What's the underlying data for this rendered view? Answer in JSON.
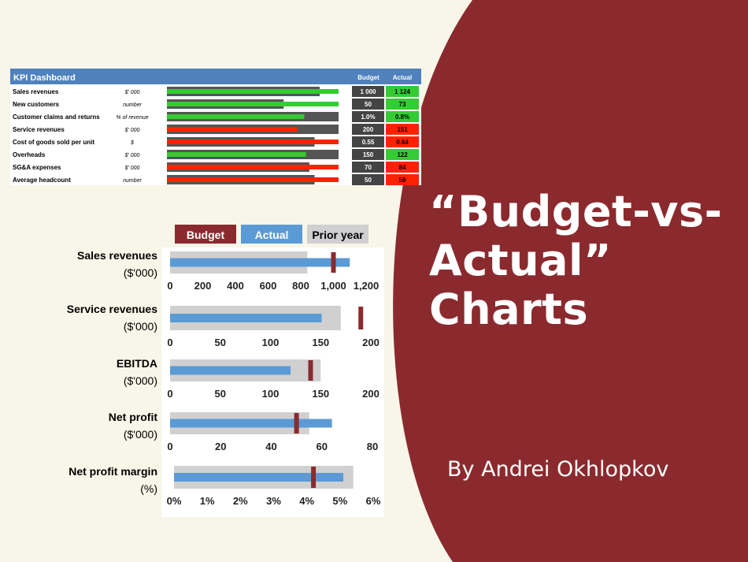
{
  "colors": {
    "maroon": "#8b2a2e",
    "actual_blue": "#5b9bd5",
    "prior_gray": "#d0d0d0",
    "kpi_header": "#4f81bd",
    "kpi_green": "#33cc33",
    "kpi_red": "#ff2200",
    "kpi_bar_gray": "#555555",
    "page_bg": "#f7f6e8"
  },
  "title": {
    "line1": "“Budget-vs-",
    "line2": "Actual”",
    "line3": "Charts"
  },
  "author": "By Andrei Okhlopkov",
  "chart_data": [
    {
      "type": "table",
      "title": "KPI Dashboard",
      "columns": [
        "Budget",
        "Actual"
      ],
      "rows": [
        {
          "name": "Sales revenues",
          "unit": "$' 000",
          "budget": "1 000",
          "actual": "1 124",
          "status": "good",
          "budget_bar": 0.89,
          "actual_bar": 1.0
        },
        {
          "name": "New customers",
          "unit": "number",
          "budget": "50",
          "actual": "73",
          "status": "good",
          "budget_bar": 0.68,
          "actual_bar": 1.0
        },
        {
          "name": "Customer claims and returns",
          "unit": "% of revenue",
          "budget": "1.0%",
          "actual": "0.8%",
          "status": "good",
          "budget_bar": 1.0,
          "actual_bar": 0.8
        },
        {
          "name": "Service revenues",
          "unit": "$' 000",
          "budget": "200",
          "actual": "151",
          "status": "bad",
          "budget_bar": 1.0,
          "actual_bar": 0.76
        },
        {
          "name": "Cost of goods sold per unit",
          "unit": "$",
          "budget": "0.55",
          "actual": "0.64",
          "status": "bad",
          "budget_bar": 0.86,
          "actual_bar": 1.0
        },
        {
          "name": "Overheads",
          "unit": "$' 000",
          "budget": "150",
          "actual": "122",
          "status": "good",
          "budget_bar": 1.0,
          "actual_bar": 0.81
        },
        {
          "name": "SG&A expenses",
          "unit": "$' 000",
          "budget": "70",
          "actual": "84",
          "status": "bad",
          "budget_bar": 0.83,
          "actual_bar": 1.0
        },
        {
          "name": "Average headcount",
          "unit": "number",
          "budget": "50",
          "actual": "58",
          "status": "bad",
          "budget_bar": 0.86,
          "actual_bar": 1.0
        }
      ]
    },
    {
      "type": "bar",
      "legend": [
        "Budget",
        "Actual",
        "Prior year"
      ],
      "legend_position": "top",
      "grid": false,
      "charts": [
        {
          "label1": "Sales revenues",
          "label2": "($'000)",
          "xlim": [
            0,
            1200
          ],
          "ticks": [
            0,
            200,
            400,
            600,
            800,
            1000,
            1200
          ],
          "tick_labels": [
            "0",
            "200",
            "400",
            "600",
            "800",
            "1,000",
            "1,200"
          ],
          "prior_year": 840,
          "actual": 1100,
          "budget": 1000
        },
        {
          "label1": "Service revenues",
          "label2": "($'000)",
          "xlim": [
            0,
            200
          ],
          "ticks": [
            0,
            50,
            100,
            150,
            200
          ],
          "tick_labels": [
            "0",
            "50",
            "100",
            "150",
            "200"
          ],
          "prior_year": 170,
          "actual": 151,
          "budget": 190
        },
        {
          "label1": "EBITDA",
          "label2": "($'000)",
          "xlim": [
            0,
            200
          ],
          "ticks": [
            0,
            50,
            100,
            150,
            200
          ],
          "tick_labels": [
            "0",
            "50",
            "100",
            "150",
            "200"
          ],
          "prior_year": 150,
          "actual": 120,
          "budget": 140
        },
        {
          "label1": "Net profit",
          "label2": "($'000)",
          "xlim": [
            0,
            80
          ],
          "ticks": [
            0,
            20,
            40,
            60,
            80
          ],
          "tick_labels": [
            "0",
            "20",
            "40",
            "60",
            "80"
          ],
          "prior_year": 55,
          "actual": 64,
          "budget": 50
        },
        {
          "label1": "Net profit margin",
          "label2": "(%)",
          "xlim": [
            0,
            6
          ],
          "ticks": [
            0,
            1,
            2,
            3,
            4,
            5,
            6
          ],
          "tick_labels": [
            "0%",
            "1%",
            "2%",
            "3%",
            "4%",
            "5%",
            "6%"
          ],
          "prior_year": 5.4,
          "actual": 5.1,
          "budget": 4.2
        }
      ]
    }
  ]
}
